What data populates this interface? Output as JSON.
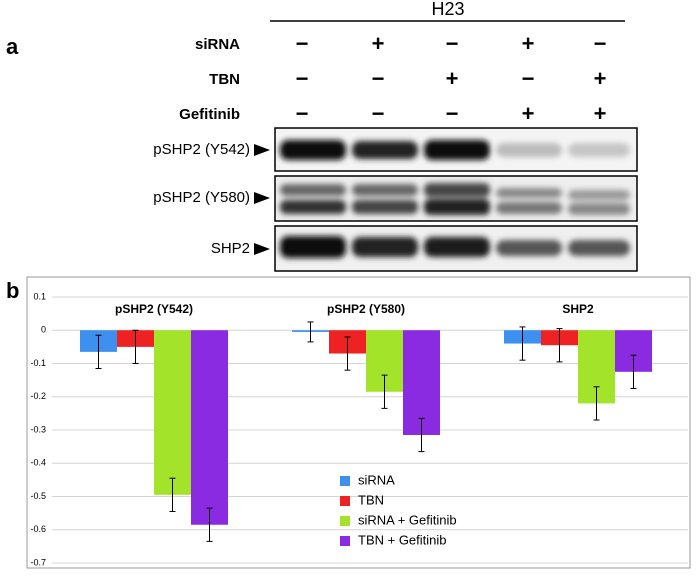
{
  "panel_a": {
    "label": "a",
    "cell_line": "H23",
    "treatments": [
      {
        "name": "siRNA",
        "signs": [
          "−",
          "+",
          "−",
          "+",
          "−"
        ]
      },
      {
        "name": "TBN",
        "signs": [
          "−",
          "−",
          "+",
          "−",
          "+"
        ]
      },
      {
        "name": "Gefitinib",
        "signs": [
          "−",
          "−",
          "−",
          "+",
          "+"
        ]
      }
    ],
    "blots": [
      "pSHP2 (Y542)",
      "pSHP2 (Y580)",
      "SHP2"
    ]
  },
  "chart_data": {
    "type": "bar",
    "panel_label": "b",
    "categories": [
      "pSHP2 (Y542)",
      "pSHP2 (Y580)",
      "SHP2"
    ],
    "series": [
      {
        "name": "siRNA",
        "color": "#3d8ff0",
        "values": [
          -0.065,
          -0.005,
          -0.04
        ],
        "errors": [
          0.05,
          0.03,
          0.05
        ]
      },
      {
        "name": "TBN",
        "color": "#ee2222",
        "values": [
          -0.05,
          -0.07,
          -0.045
        ],
        "errors": [
          0.05,
          0.05,
          0.05
        ]
      },
      {
        "name": "siRNA + Gefitinib",
        "color": "#a3e42a",
        "values": [
          -0.495,
          -0.185,
          -0.22
        ],
        "errors": [
          0.05,
          0.05,
          0.05
        ]
      },
      {
        "name": "TBN + Gefitinib",
        "color": "#8a2be2",
        "values": [
          -0.585,
          -0.315,
          -0.125
        ],
        "errors": [
          0.05,
          0.05,
          0.05
        ]
      }
    ],
    "ylim": [
      -0.7,
      0.1
    ],
    "yticks": [
      -0.7,
      -0.6,
      -0.5,
      -0.4,
      -0.3,
      -0.2,
      -0.1,
      0,
      0.1
    ],
    "grid": true
  }
}
